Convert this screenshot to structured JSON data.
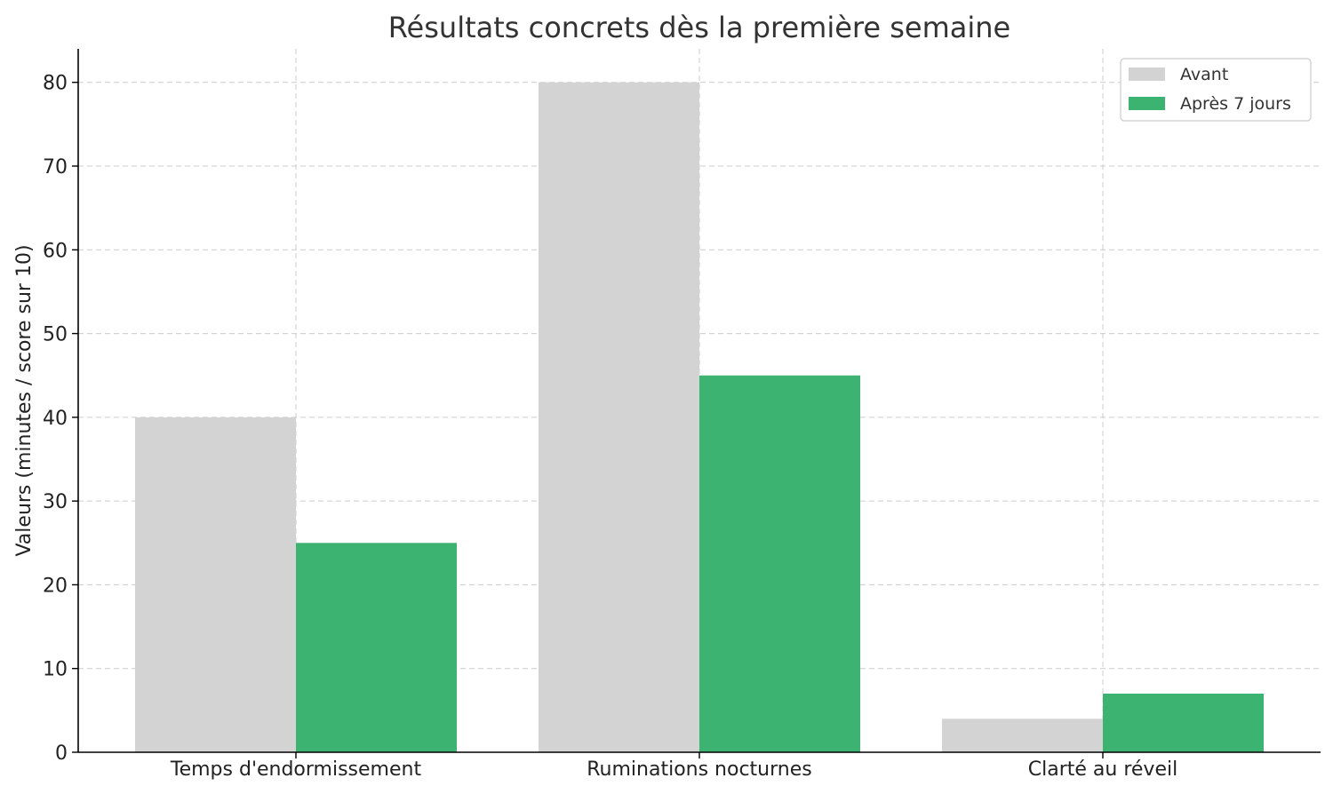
{
  "chart_data": {
    "type": "bar",
    "title": "Résultats concrets dès la première semaine",
    "xlabel": "",
    "ylabel": "Valeurs (minutes / score sur 10)",
    "categories": [
      "Temps d'endormissement",
      "Ruminations nocturnes",
      "Clarté au réveil"
    ],
    "series": [
      {
        "name": "Avant",
        "values": [
          40,
          80,
          4
        ],
        "color": "#d3d3d3"
      },
      {
        "name": "Après 7 jours",
        "values": [
          25,
          45,
          7
        ],
        "color": "#3cb371"
      }
    ],
    "ylim": [
      0,
      84
    ],
    "yticks": [
      0,
      10,
      20,
      30,
      40,
      50,
      60,
      70,
      80
    ],
    "grid": true,
    "legend_position": "top-right"
  }
}
